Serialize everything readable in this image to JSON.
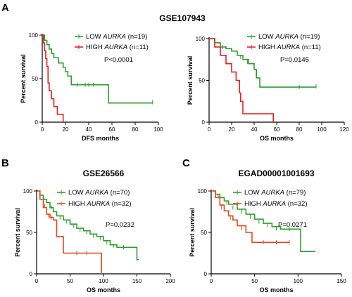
{
  "panel_letters": [
    "A",
    "B",
    "C"
  ],
  "section_a_title": "GSE107943",
  "chart_data": [
    {
      "type": "line",
      "subtype": "kaplan-meier",
      "panel": "A",
      "title": "",
      "ylabel": "Percent survival",
      "xlabel": "DFS months",
      "xlim": [
        0,
        100
      ],
      "ylim": [
        0,
        100
      ],
      "xticks": [
        0,
        20,
        40,
        60,
        80,
        100
      ],
      "yticks": [
        0,
        50,
        100
      ],
      "legend_position": "top-right",
      "pvalue": "P<0.0001",
      "series": [
        {
          "name": "LOW AURKA (n=19)",
          "legend_prefix": "LOW ",
          "legend_gene": "AURKA",
          "legend_suffix": " (n=19)",
          "color": "#2e9e2e",
          "points": [
            [
              0,
              100
            ],
            [
              2,
              94
            ],
            [
              4,
              89
            ],
            [
              6,
              84
            ],
            [
              8,
              79
            ],
            [
              10,
              74
            ],
            [
              14,
              68
            ],
            [
              18,
              63
            ],
            [
              20,
              58
            ],
            [
              22,
              53
            ],
            [
              25,
              43
            ],
            [
              57,
              43
            ],
            [
              57,
              22
            ],
            [
              95,
              22
            ]
          ],
          "censor": [
            [
              30,
              43
            ],
            [
              37,
              43
            ],
            [
              40,
              43
            ],
            [
              44,
              43
            ],
            [
              95,
              23
            ]
          ]
        },
        {
          "name": "HIGH AURKA (n=11)",
          "legend_prefix": "HIGH ",
          "legend_gene": "AURKA",
          "legend_suffix": " (n=11)",
          "color": "#e82020",
          "points": [
            [
              0,
              100
            ],
            [
              1,
              91
            ],
            [
              2,
              82
            ],
            [
              3,
              73
            ],
            [
              4,
              64
            ],
            [
              5,
              45
            ],
            [
              6,
              36
            ],
            [
              8,
              27
            ],
            [
              10,
              18
            ],
            [
              13,
              9
            ],
            [
              18,
              9
            ],
            [
              18,
              0
            ]
          ],
          "censor": []
        }
      ]
    },
    {
      "type": "line",
      "subtype": "kaplan-meier",
      "panel": "A",
      "title": "",
      "ylabel": "Percent survival",
      "xlabel": "OS months",
      "xlim": [
        0,
        120
      ],
      "ylim": [
        0,
        100
      ],
      "xticks": [
        0,
        20,
        40,
        60,
        80,
        100,
        120
      ],
      "yticks": [
        0,
        50,
        100
      ],
      "legend_position": "top-right",
      "pvalue": "P=0.0145",
      "series": [
        {
          "name": "LOW AURKA (n=19)",
          "legend_prefix": "LOW ",
          "legend_gene": "AURKA",
          "legend_suffix": " (n=19)",
          "color": "#2e9e2e",
          "points": [
            [
              0,
              100
            ],
            [
              5,
              95
            ],
            [
              10,
              90
            ],
            [
              15,
              88
            ],
            [
              20,
              85
            ],
            [
              25,
              80
            ],
            [
              30,
              75
            ],
            [
              35,
              70
            ],
            [
              38,
              70
            ],
            [
              40,
              63
            ],
            [
              42,
              53
            ],
            [
              45,
              42
            ],
            [
              95,
              42
            ]
          ],
          "censor": [
            [
              12,
              90
            ],
            [
              28,
              78
            ],
            [
              34,
              72
            ],
            [
              80,
              42
            ],
            [
              95,
              43
            ]
          ]
        },
        {
          "name": "HIGH AURKA (n=11)",
          "legend_prefix": "HIGH ",
          "legend_gene": "AURKA",
          "legend_suffix": " (n=11)",
          "color": "#e82020",
          "points": [
            [
              0,
              100
            ],
            [
              5,
              90
            ],
            [
              10,
              80
            ],
            [
              15,
              70
            ],
            [
              20,
              60
            ],
            [
              24,
              50
            ],
            [
              27,
              35
            ],
            [
              28,
              25
            ],
            [
              30,
              10
            ],
            [
              57,
              10
            ],
            [
              57,
              0
            ]
          ],
          "censor": []
        }
      ]
    },
    {
      "type": "line",
      "subtype": "kaplan-meier",
      "panel": "B",
      "title": "GSE26566",
      "ylabel": "Percent survival",
      "xlabel": "OS months",
      "xlim": [
        0,
        200
      ],
      "ylim": [
        0,
        100
      ],
      "xticks": [
        0,
        50,
        100,
        150,
        200
      ],
      "yticks": [
        0,
        50,
        100
      ],
      "legend_position": "top-right",
      "pvalue": "P=0.0232",
      "series": [
        {
          "name": "LOW AURKA (n=70)",
          "legend_prefix": "LOW ",
          "legend_gene": "AURKA",
          "legend_suffix": " (n=70)",
          "color": "#2e9e2e",
          "points": [
            [
              0,
              100
            ],
            [
              5,
              95
            ],
            [
              10,
              90
            ],
            [
              15,
              86
            ],
            [
              20,
              80
            ],
            [
              25,
              75
            ],
            [
              30,
              70
            ],
            [
              40,
              65
            ],
            [
              50,
              60
            ],
            [
              60,
              55
            ],
            [
              70,
              52
            ],
            [
              80,
              48
            ],
            [
              90,
              45
            ],
            [
              100,
              40
            ],
            [
              110,
              35
            ],
            [
              120,
              32
            ],
            [
              150,
              32
            ],
            [
              150,
              17
            ],
            [
              153,
              17
            ]
          ],
          "censor": [
            [
              22,
              80
            ],
            [
              35,
              68
            ],
            [
              45,
              63
            ],
            [
              55,
              58
            ],
            [
              65,
              53
            ],
            [
              75,
              50
            ],
            [
              85,
              46
            ],
            [
              95,
              43
            ],
            [
              105,
              38
            ],
            [
              115,
              34
            ],
            [
              130,
              32
            ]
          ]
        },
        {
          "name": "HIGH AURKA (n=32)",
          "legend_prefix": "HIGH ",
          "legend_gene": "AURKA",
          "legend_suffix": " (n=32)",
          "color": "#e8471a",
          "points": [
            [
              0,
              100
            ],
            [
              5,
              90
            ],
            [
              10,
              80
            ],
            [
              15,
              72
            ],
            [
              20,
              68
            ],
            [
              25,
              65
            ],
            [
              30,
              45
            ],
            [
              40,
              25
            ],
            [
              97,
              25
            ],
            [
              97,
              0
            ]
          ],
          "censor": [
            [
              12,
              82
            ],
            [
              18,
              70
            ],
            [
              22,
              68
            ],
            [
              60,
              25
            ],
            [
              75,
              25
            ]
          ]
        }
      ]
    },
    {
      "type": "line",
      "subtype": "kaplan-meier",
      "panel": "C",
      "title": "EGAD00001001693",
      "ylabel": "Percent survival",
      "xlabel": "OS months",
      "xlim": [
        0,
        150
      ],
      "ylim": [
        0,
        100
      ],
      "xticks": [
        0,
        50,
        100,
        150
      ],
      "yticks": [
        0,
        50,
        100
      ],
      "legend_position": "top-right",
      "pvalue": "P=0.0271",
      "series": [
        {
          "name": "LOW AURKA (n=79)",
          "legend_prefix": "LOW ",
          "legend_gene": "AURKA",
          "legend_suffix": " (n=79)",
          "color": "#2e9e2e",
          "points": [
            [
              0,
              100
            ],
            [
              5,
              96
            ],
            [
              10,
              92
            ],
            [
              15,
              88
            ],
            [
              20,
              84
            ],
            [
              30,
              78
            ],
            [
              40,
              72
            ],
            [
              50,
              66
            ],
            [
              60,
              61
            ],
            [
              70,
              57
            ],
            [
              80,
              54
            ],
            [
              100,
              54
            ],
            [
              103,
              27
            ],
            [
              120,
              27
            ]
          ],
          "censor": [
            [
              8,
              94
            ],
            [
              18,
              86
            ],
            [
              25,
              80
            ],
            [
              35,
              75
            ],
            [
              45,
              69
            ],
            [
              55,
              63
            ],
            [
              65,
              59
            ],
            [
              75,
              55
            ],
            [
              90,
              54
            ]
          ]
        },
        {
          "name": "HIGH AURKA (n=32)",
          "legend_prefix": "HIGH ",
          "legend_gene": "AURKA",
          "legend_suffix": " (n=32)",
          "color": "#e8471a",
          "points": [
            [
              0,
              100
            ],
            [
              5,
              92
            ],
            [
              10,
              83
            ],
            [
              15,
              76
            ],
            [
              20,
              70
            ],
            [
              25,
              65
            ],
            [
              30,
              58
            ],
            [
              40,
              50
            ],
            [
              47,
              38
            ],
            [
              90,
              38
            ]
          ],
          "censor": [
            [
              12,
              80
            ],
            [
              22,
              68
            ],
            [
              35,
              55
            ],
            [
              60,
              38
            ],
            [
              75,
              38
            ],
            [
              90,
              38
            ]
          ]
        }
      ]
    }
  ]
}
